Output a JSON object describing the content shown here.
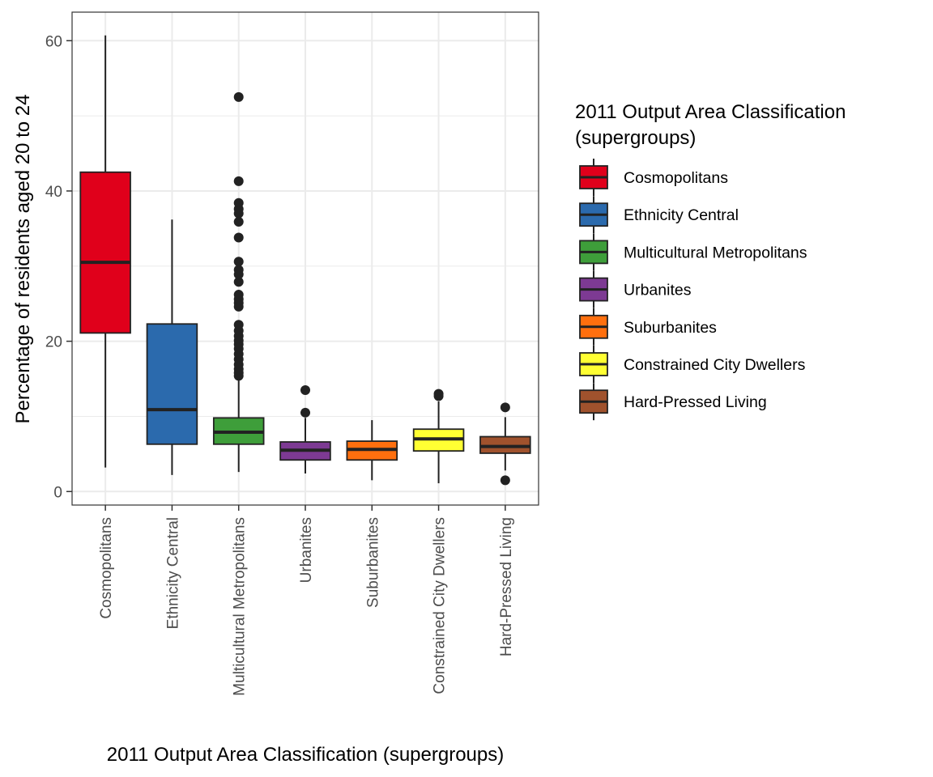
{
  "chart_data": {
    "type": "boxplot",
    "xlabel": "2011 Output Area Classification (supergroups)",
    "ylabel": "Percentage of residents aged 20 to 24",
    "ylim": [
      -1.8,
      63.8
    ],
    "yticks": [
      0,
      20,
      40,
      60
    ],
    "ytick_labels": [
      "0",
      "20",
      "40",
      "60"
    ],
    "grid": true,
    "legend": {
      "title": [
        "2011 Output Area Classification",
        "(supergroups)"
      ],
      "position": "right"
    },
    "categories": [
      "Cosmopolitans",
      "Ethnicity Central",
      "Multicultural Metropolitans",
      "Urbanites",
      "Suburbanites",
      "Constrained City Dwellers",
      "Hard-Pressed Living"
    ],
    "colors": [
      "#e0001b",
      "#2b6aad",
      "#3e9e3a",
      "#7d3a93",
      "#ff6f0e",
      "#ffff33",
      "#a0522d"
    ],
    "boxes": [
      {
        "whisker_low": 3.2,
        "q1": 21.1,
        "median": 30.5,
        "q3": 42.5,
        "whisker_high": 60.7,
        "outliers": []
      },
      {
        "whisker_low": 2.2,
        "q1": 6.3,
        "median": 10.9,
        "q3": 22.3,
        "whisker_high": 36.2,
        "outliers": []
      },
      {
        "whisker_low": 2.6,
        "q1": 6.3,
        "median": 7.9,
        "q3": 9.8,
        "whisker_high": 15.2,
        "outliers": [
          15.4,
          15.8,
          16.3,
          16.9,
          17.6,
          18.3,
          19.0,
          19.6,
          20.1,
          20.7,
          21.4,
          22.2,
          24.6,
          25.1,
          25.6,
          26.2,
          27.9,
          28.9,
          29.5,
          30.6,
          33.8,
          35.9,
          37.0,
          37.6,
          38.4,
          41.3,
          52.5
        ]
      },
      {
        "whisker_low": 2.4,
        "q1": 4.2,
        "median": 5.5,
        "q3": 6.6,
        "whisker_high": 9.8,
        "outliers": [
          10.5,
          13.5
        ]
      },
      {
        "whisker_low": 1.5,
        "q1": 4.2,
        "median": 5.6,
        "q3": 6.7,
        "whisker_high": 9.5,
        "outliers": []
      },
      {
        "whisker_low": 1.1,
        "q1": 5.4,
        "median": 7.0,
        "q3": 8.3,
        "whisker_high": 12.0,
        "outliers": [
          12.7,
          13.0
        ]
      },
      {
        "whisker_low": 2.8,
        "q1": 5.1,
        "median": 6.0,
        "q3": 7.3,
        "whisker_high": 9.9,
        "outliers": [
          1.5,
          11.2
        ]
      }
    ]
  }
}
